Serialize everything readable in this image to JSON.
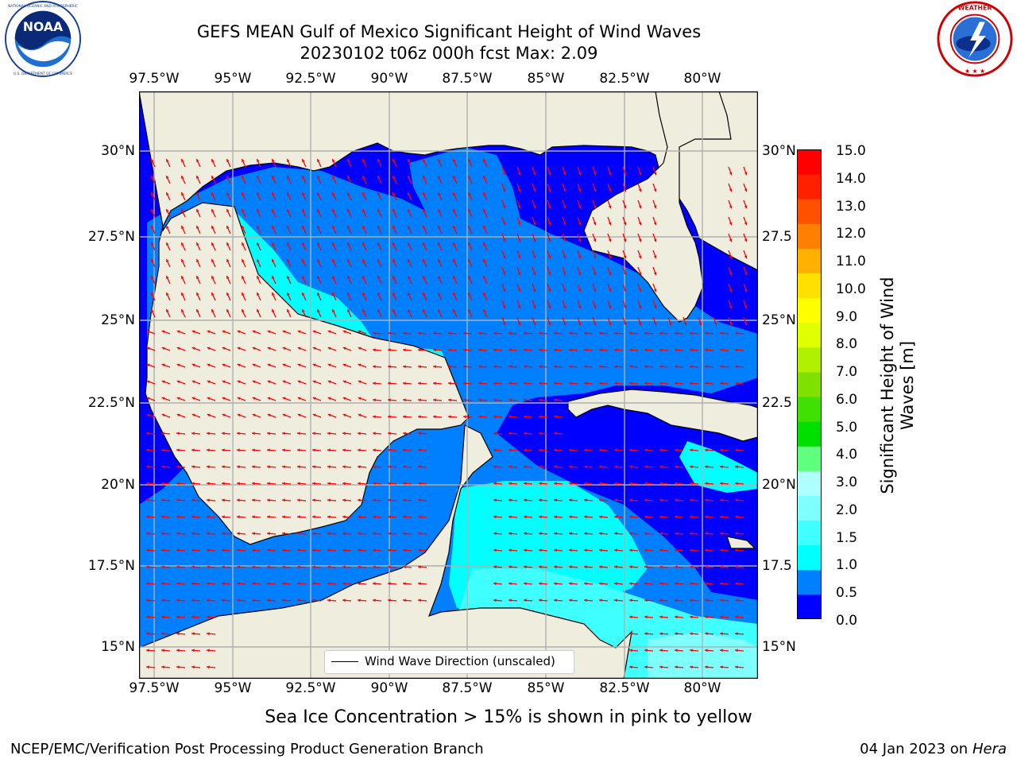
{
  "title": {
    "line1": "GEFS MEAN Gulf of Mexico Significant Height of Wind Waves",
    "line2": "20230102 t06z 000h fcst   Max: 2.09"
  },
  "logos": {
    "left": {
      "icon": "noaa-logo",
      "label": "NOAA",
      "ring_text": "NATIONAL OCEANIC AND ATMOSPHERIC ADMINISTRATION · U.S. DEPARTMENT OF COMMERCE"
    },
    "right": {
      "icon": "nws-logo",
      "ring_text": "NATIONAL WEATHER SERVICE"
    }
  },
  "map": {
    "lon_ticks": [
      "97.5°W",
      "95°W",
      "92.5°W",
      "90°W",
      "87.5°W",
      "85°W",
      "82.5°W",
      "80°W"
    ],
    "lat_ticks_left": [
      "30°N",
      "27.5°N",
      "25°N",
      "22.5°N",
      "20°N",
      "17.5°N",
      "15°N"
    ],
    "lat_ticks_right": [
      "30°N",
      "27.5",
      "25°N",
      "22.5",
      "20°N",
      "17.5",
      "15°N"
    ],
    "legend": "Wind Wave Direction (unscaled)",
    "land_color": "#efedde",
    "arrow_color": "#ff0000",
    "grid_color": "#b0b0b0"
  },
  "colorbar": {
    "title_line1": "Significant Height of Wind",
    "title_line2": "Waves [m]",
    "labels": [
      "15.0",
      "14.0",
      "13.0",
      "12.0",
      "11.0",
      "10.0",
      "9.0",
      "8.0",
      "7.0",
      "6.0",
      "5.0",
      "4.0",
      "3.0",
      "2.0",
      "1.5",
      "1.0",
      "0.5",
      "0.0"
    ],
    "colors": [
      "#0000ff",
      "#0080ff",
      "#00ffff",
      "#40ffff",
      "#80ffff",
      "#b0ffff",
      "#60ff80",
      "#00e000",
      "#40e000",
      "#80e000",
      "#b0f000",
      "#e0ff00",
      "#ffff00",
      "#ffe000",
      "#ffb000",
      "#ff8000",
      "#ff5000",
      "#ff2000",
      "#ff0000"
    ]
  },
  "sea_ice_note": "Sea Ice Concentration > 15% is shown in pink to yellow",
  "footer": {
    "left": "NCEP/EMC/Verification Post Processing Product Generation Branch",
    "right_date": "04 Jan 2023 on ",
    "right_host": "Hera"
  }
}
